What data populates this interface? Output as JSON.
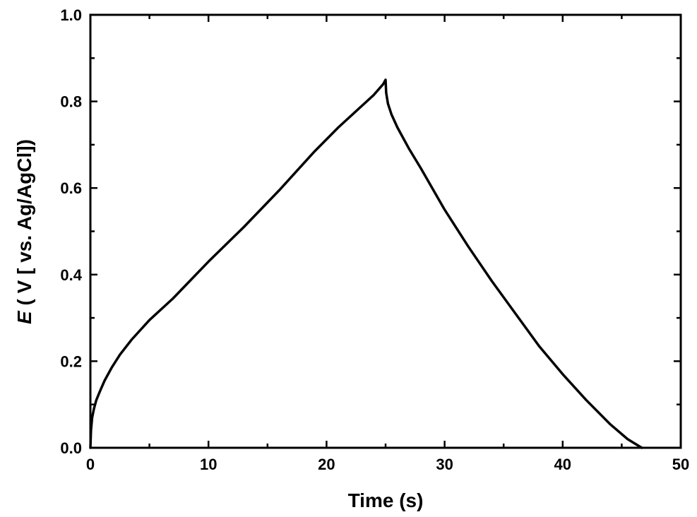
{
  "chart_data": {
    "type": "line",
    "xlabel": "Time (s)",
    "ylabel_italic": "E",
    "ylabel_rest": " ( V [ vs. Ag/AgCl])",
    "xlim": [
      0,
      50
    ],
    "ylim": [
      0.0,
      1.0
    ],
    "xticks": [
      0,
      10,
      20,
      30,
      40,
      50
    ],
    "xtick_labels": [
      "0",
      "10",
      "20",
      "30",
      "40",
      "50"
    ],
    "yticks": [
      0.0,
      0.2,
      0.4,
      0.6,
      0.8,
      1.0
    ],
    "ytick_labels": [
      "0.0",
      "0.2",
      "0.4",
      "0.6",
      "0.8",
      "1.0"
    ],
    "grid": false,
    "line_color": "#000000",
    "series": [
      {
        "x": [
          0,
          0.05,
          0.15,
          0.3,
          0.5,
          0.8,
          1.2,
          1.8,
          2.5,
          3.5,
          5,
          7,
          10,
          13,
          16,
          19,
          21,
          23,
          24,
          24.8,
          25.0,
          25.05,
          25.2,
          25.5,
          26,
          27,
          28,
          30,
          32,
          34,
          36,
          38,
          40,
          42,
          44,
          45.5,
          46.7
        ],
        "y": [
          0.0,
          0.04,
          0.07,
          0.09,
          0.11,
          0.13,
          0.155,
          0.185,
          0.215,
          0.25,
          0.295,
          0.345,
          0.43,
          0.51,
          0.595,
          0.685,
          0.74,
          0.79,
          0.815,
          0.84,
          0.85,
          0.82,
          0.795,
          0.77,
          0.74,
          0.69,
          0.645,
          0.55,
          0.465,
          0.385,
          0.31,
          0.235,
          0.17,
          0.11,
          0.055,
          0.02,
          0.0
        ]
      }
    ]
  }
}
